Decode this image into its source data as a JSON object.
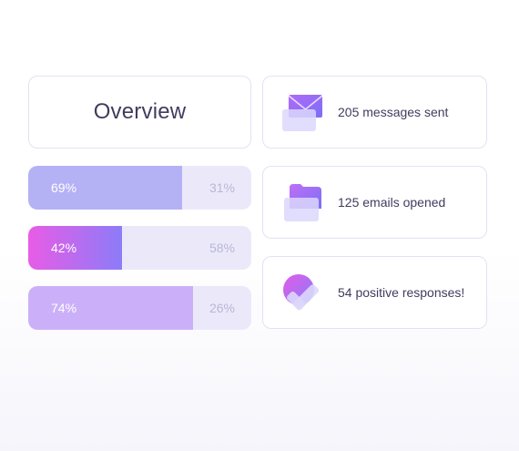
{
  "overview": {
    "title": "Overview"
  },
  "bars": [
    {
      "value": 69,
      "left_label": "69%",
      "right_label": "31%"
    },
    {
      "value": 42,
      "left_label": "42%",
      "right_label": "58%"
    },
    {
      "value": 74,
      "left_label": "74%",
      "right_label": "26%"
    }
  ],
  "stats": [
    {
      "icon": "envelope-icon",
      "label": "205 messages sent"
    },
    {
      "icon": "folder-icon",
      "label": "125 emails opened"
    },
    {
      "icon": "check-icon",
      "label": "54 positive responses!"
    }
  ],
  "colors": {
    "accent_purple": "#8c7cf8",
    "accent_pink": "#e85ce6",
    "bar_track": "#ebe9f9",
    "text_dark": "#3f3d5e",
    "text_muted": "#b9b6d6"
  }
}
